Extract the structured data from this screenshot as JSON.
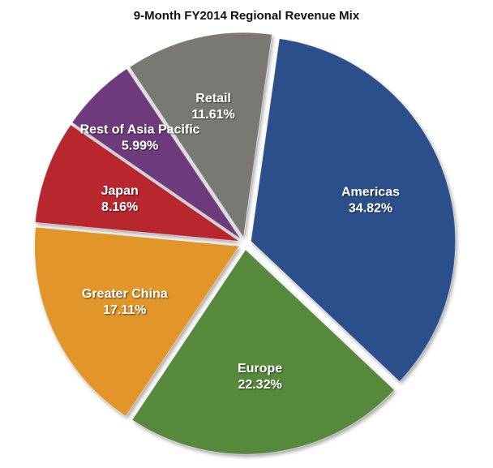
{
  "chart_data": {
    "type": "pie",
    "title": "9-Month FY2014 Regional Revenue Mix",
    "slices": [
      {
        "label": "Americas",
        "value": 34.82,
        "display": "34.82%",
        "color": "#2b4f8a"
      },
      {
        "label": "Europe",
        "value": 22.32,
        "display": "22.32%",
        "color": "#57893a"
      },
      {
        "label": "Greater China",
        "value": 17.11,
        "display": "17.11%",
        "color": "#e2962a"
      },
      {
        "label": "Japan",
        "value": 8.16,
        "display": "8.16%",
        "color": "#b8272f"
      },
      {
        "label": "Rest of Asia Pacific",
        "value": 5.99,
        "display": "5.99%",
        "color": "#6d3a7c"
      },
      {
        "label": "Retail",
        "value": 11.61,
        "display": "11.61%",
        "color": "#7a7872"
      }
    ],
    "exploded": true,
    "start_angle_deg": 8,
    "direction": "clockwise",
    "legend": "none"
  }
}
